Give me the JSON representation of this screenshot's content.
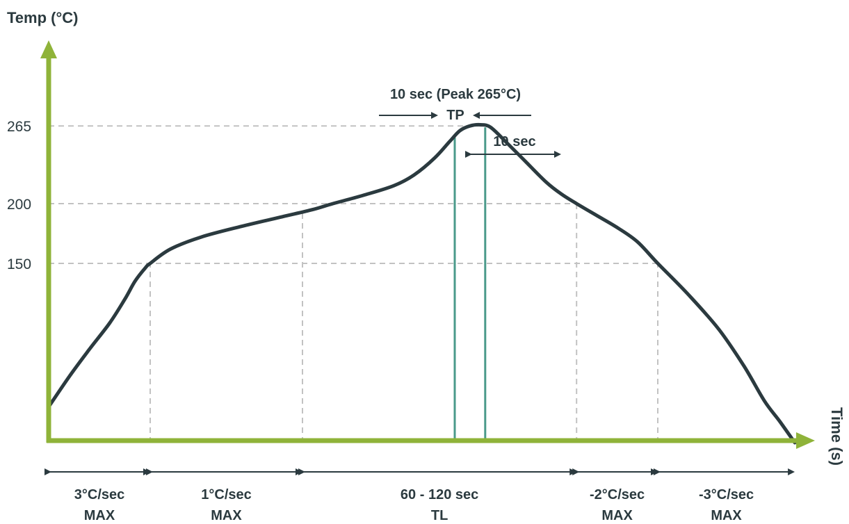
{
  "chart_data": {
    "type": "line",
    "title": "",
    "ylabel": "Temp (°C)",
    "xlabel": "Time (s)",
    "yticks": [
      "265",
      "200",
      "150"
    ],
    "ytick_values": [
      265,
      200,
      150
    ],
    "series": [
      {
        "values": [
          [
            0,
            30
          ],
          [
            4,
            55
          ],
          [
            8,
            78
          ],
          [
            12,
            100
          ],
          [
            15,
            120
          ],
          [
            17,
            135
          ],
          [
            19,
            146
          ],
          [
            20,
            150
          ],
          [
            24,
            162
          ],
          [
            30,
            172
          ],
          [
            38,
            181
          ],
          [
            46,
            189
          ],
          [
            52,
            195
          ],
          [
            56,
            200
          ],
          [
            62,
            207
          ],
          [
            68,
            215
          ],
          [
            72,
            224
          ],
          [
            76,
            238
          ],
          [
            79,
            252
          ],
          [
            81,
            261
          ],
          [
            83,
            265
          ],
          [
            85,
            266
          ],
          [
            87,
            264
          ],
          [
            90,
            252
          ],
          [
            94,
            235
          ],
          [
            98,
            218
          ],
          [
            101,
            208
          ],
          [
            104,
            200
          ],
          [
            108,
            190
          ],
          [
            112,
            180
          ],
          [
            116,
            168
          ],
          [
            120,
            150
          ],
          [
            126,
            124
          ],
          [
            132,
            95
          ],
          [
            137,
            64
          ],
          [
            141,
            35
          ],
          [
            144,
            18
          ],
          [
            147,
            0
          ]
        ]
      }
    ],
    "peak_annotation": {
      "title": "10 sec (Peak 265°C)",
      "label": "TP"
    },
    "cooling_annotation": "10 sec",
    "segments": [
      {
        "line1": "3°C/sec",
        "line2": "MAX"
      },
      {
        "line1": "1°C/sec",
        "line2": "MAX"
      },
      {
        "line1": "60 - 120 sec",
        "line2": "TL"
      },
      {
        "line1": "-2°C/sec",
        "line2": "MAX"
      },
      {
        "line1": "-3°C/sec",
        "line2": "MAX"
      }
    ],
    "segment_bounds": [
      0,
      20,
      50,
      104,
      120,
      147
    ],
    "guide_times": [
      20,
      50,
      104,
      120
    ],
    "tl_bounds": [
      80,
      86
    ],
    "colors": {
      "axis": "#8fb339",
      "curve": "#2b3a3f",
      "guide": "#c2c2c2",
      "tl_lines": "#4a9a8a",
      "arrow": "#2b3a3f"
    }
  }
}
